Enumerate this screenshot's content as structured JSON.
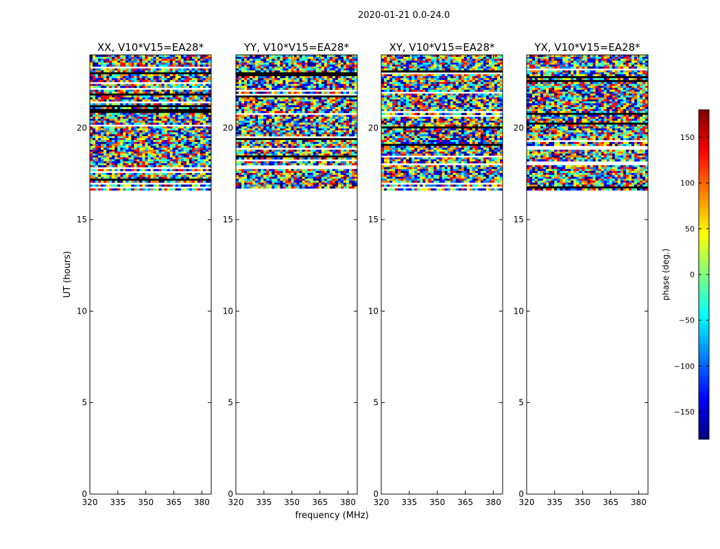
{
  "chart_data": {
    "type": "heatmap",
    "suptitle": "2020-01-21 0.0-24.0",
    "xlabel": "frequency (MHz)",
    "ylabel": "UT (hours)",
    "xlim": [
      320,
      385
    ],
    "ylim": [
      0,
      24
    ],
    "xticks": [
      "320",
      "335",
      "350",
      "365",
      "380"
    ],
    "yticks": [
      "0",
      "5",
      "10",
      "15",
      "20"
    ],
    "data_time_range_hours": [
      16.6,
      24.0
    ],
    "panels": [
      {
        "title": "XX, V10*V15=EA28*",
        "polarization": "XX"
      },
      {
        "title": "YY, V10*V15=EA28*",
        "polarization": "YY"
      },
      {
        "title": "XY, V10*V15=EA28*",
        "polarization": "XY"
      },
      {
        "title": "YX, V10*V15=EA28*",
        "polarization": "YX"
      }
    ],
    "colorbar": {
      "label": "phase (deg.)",
      "colormap": "jet",
      "vmin": -180,
      "vmax": 180,
      "ticks": [
        "150",
        "100",
        "50",
        "0",
        "−50",
        "−100",
        "−150"
      ]
    },
    "colors": {
      "jet": [
        "#00007f",
        "#0000ff",
        "#007fff",
        "#00ffff",
        "#7fff7f",
        "#ffff00",
        "#ff7f00",
        "#ff0000",
        "#7f0000"
      ]
    }
  }
}
